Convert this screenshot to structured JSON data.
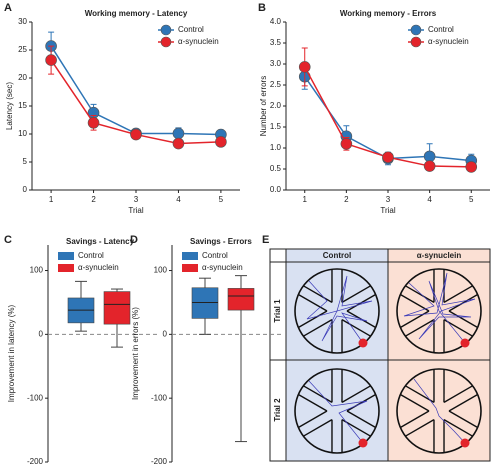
{
  "chart_data": [
    {
      "type": "line",
      "panel": "A",
      "title": "Working memory - Latency",
      "xlabel": "Trial",
      "ylabel": "Latency (sec)",
      "x": [
        1,
        2,
        3,
        4,
        5
      ],
      "xlim": [
        0.55,
        5.45
      ],
      "xticks": [
        1,
        2,
        3,
        4,
        5
      ],
      "ylim": [
        0,
        30
      ],
      "yticks": [
        0,
        5,
        10,
        15,
        20,
        25,
        30
      ],
      "legend": "top-right",
      "series": [
        {
          "name": "Control",
          "color": "#2e75b6",
          "values": [
            25.7,
            13.8,
            10.1,
            10.1,
            9.9
          ],
          "errors": [
            2.5,
            1.5,
            0.6,
            1.0,
            0.6
          ]
        },
        {
          "name": "α-synuclein",
          "color": "#e3242b",
          "values": [
            23.2,
            12.0,
            9.9,
            8.3,
            8.6
          ],
          "errors": [
            2.5,
            1.3,
            0.7,
            0.7,
            0.6
          ]
        }
      ]
    },
    {
      "type": "line",
      "panel": "B",
      "title": "Working memory - Errors",
      "xlabel": "Trial",
      "ylabel": "Number of errors",
      "x": [
        1,
        2,
        3,
        4,
        5
      ],
      "xlim": [
        0.55,
        5.45
      ],
      "xticks": [
        1,
        2,
        3,
        4,
        5
      ],
      "ylim": [
        0,
        4
      ],
      "yticks": [
        {
          "value": 0,
          "label": "0.0"
        },
        {
          "value": 0.5,
          "label": "0.5"
        },
        {
          "value": 1,
          "label": "1.0"
        },
        {
          "value": 1.5,
          "label": "1.5"
        },
        {
          "value": 2,
          "label": "2.0"
        },
        {
          "value": 2.5,
          "label": "2.5"
        },
        {
          "value": 3,
          "label": "3.0"
        },
        {
          "value": 3.5,
          "label": "3.5"
        },
        {
          "value": 4,
          "label": "4.0"
        }
      ],
      "legend": "top-right",
      "series": [
        {
          "name": "Control",
          "color": "#2e75b6",
          "values": [
            2.7,
            1.28,
            0.75,
            0.8,
            0.7
          ],
          "errors": [
            0.3,
            0.25,
            0.15,
            0.3,
            0.15
          ]
        },
        {
          "name": "α-synuclein",
          "color": "#e3242b",
          "values": [
            2.93,
            1.1,
            0.78,
            0.57,
            0.55
          ],
          "errors": [
            0.45,
            0.15,
            0.1,
            0.1,
            0.1
          ]
        }
      ]
    },
    {
      "type": "box",
      "panel": "C",
      "title": "Savings - Latency",
      "ylabel": "Improvement in latency (%)",
      "ylim": [
        -200,
        140
      ],
      "yticks": [
        -200,
        -100,
        0,
        100
      ],
      "legend": "top-left",
      "series": [
        {
          "name": "Control",
          "color": "#2e75b6",
          "whisker_low": 5,
          "q1": 18,
          "median": 38,
          "q3": 57,
          "whisker_high": 83
        },
        {
          "name": "α-synuclein",
          "color": "#e3242b",
          "whisker_low": -20,
          "q1": 16,
          "median": 47,
          "q3": 67,
          "whisker_high": 71
        }
      ]
    },
    {
      "type": "box",
      "panel": "D",
      "title": "Savings - Errors",
      "ylabel": "Improvement in errors (%)",
      "ylim": [
        -200,
        140
      ],
      "yticks": [
        -200,
        -100,
        0,
        100
      ],
      "legend": "top-left",
      "series": [
        {
          "name": "Control",
          "color": "#2e75b6",
          "whisker_low": 0,
          "q1": 25,
          "median": 50,
          "q3": 73,
          "whisker_high": 88
        },
        {
          "name": "α-synuclein",
          "color": "#e3242b",
          "whisker_low": -168,
          "q1": 38,
          "median": 60,
          "q3": 72,
          "whisker_high": 92
        }
      ]
    }
  ],
  "maze_panel": {
    "panel": "E",
    "columns": [
      "Control",
      "α-synuclein"
    ],
    "rows": [
      "Trial 1",
      "Trial 2"
    ]
  }
}
